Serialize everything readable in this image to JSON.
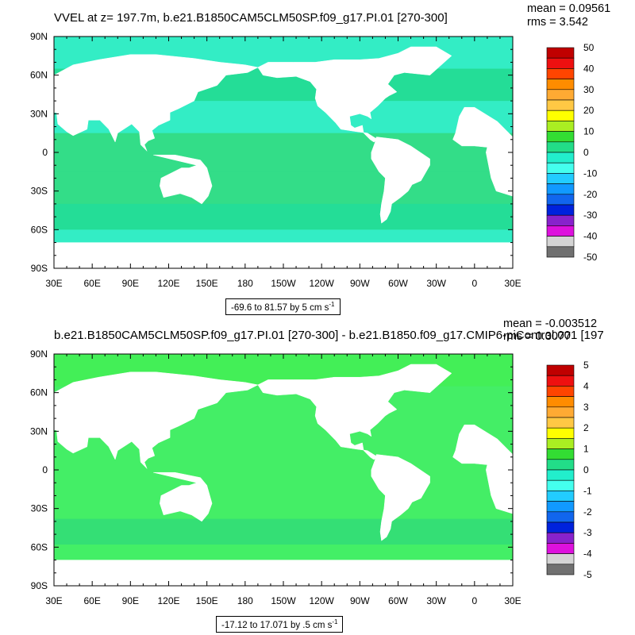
{
  "panels": [
    {
      "title": "VVEL at z= 197.7m, b.e21.B1850CAM5CLM50SP.f09_g17.PI.01 [270-300]",
      "mean_label": "mean = 0.09561",
      "rms_label": "rms = 3.542",
      "range_text": "-69.6 to 81.57 by 5 cm s",
      "range_sup": "-1"
    },
    {
      "title": "b.e21.B1850CAM5CLM50SP.f09_g17.PI.01 [270-300] - b.e21.B1850.f09_g17.CMIP6-piControl.001 [197",
      "mean_label": "mean = -0.003512",
      "rms_label": "rms = 0.3077",
      "range_text": "-17.12 to 17.071 by .5 cm s",
      "range_sup": "-1"
    }
  ],
  "chart_data": [
    {
      "type": "heatmap",
      "title": "VVEL at z= 197.7m, b.e21.B1850CAM5CLM50SP.f09_g17.PI.01 [270-300]",
      "x_ticks": [
        "30E",
        "60E",
        "90E",
        "120E",
        "150E",
        "180",
        "150W",
        "120W",
        "90W",
        "60W",
        "30W",
        "0",
        "30E"
      ],
      "y_ticks": [
        "90N",
        "60N",
        "30N",
        "0",
        "30S",
        "60S",
        "90S"
      ],
      "xlim": [
        30,
        390
      ],
      "ylim": [
        -90,
        90
      ],
      "colorbar_labels": [
        "50",
        "40",
        "30",
        "20",
        "10",
        "0",
        "-10",
        "-20",
        "-30",
        "-40",
        "-50"
      ],
      "colorbar_colors": [
        "#c00000",
        "#ee1010",
        "#ff4500",
        "#ff8c00",
        "#ffaa33",
        "#ffc844",
        "#ffff00",
        "#aaee22",
        "#33dd33",
        "#22dd88",
        "#22eecc",
        "#44ffee",
        "#22ccff",
        "#1199ff",
        "#1166ee",
        "#0022dd",
        "#8822cc",
        "#dd11dd",
        "#d4d4d4",
        "#707070"
      ],
      "stats": {
        "mean": 0.09561,
        "rms": 3.542
      },
      "range": {
        "min": -69.6,
        "max": 81.57,
        "interval": 5,
        "units": "cm s-1"
      }
    },
    {
      "type": "heatmap",
      "title": "b.e21.B1850CAM5CLM50SP.f09_g17.PI.01 [270-300] - b.e21.B1850.f09_g17.CMIP6-piControl.001 [197",
      "x_ticks": [
        "30E",
        "60E",
        "90E",
        "120E",
        "150E",
        "180",
        "150W",
        "120W",
        "90W",
        "60W",
        "30W",
        "0",
        "30E"
      ],
      "y_ticks": [
        "90N",
        "60N",
        "30N",
        "0",
        "30S",
        "60S",
        "90S"
      ],
      "xlim": [
        30,
        390
      ],
      "ylim": [
        -90,
        90
      ],
      "colorbar_labels": [
        "5",
        "4",
        "3",
        "2",
        "1",
        "0",
        "-1",
        "-2",
        "-3",
        "-4",
        "-5"
      ],
      "colorbar_colors": [
        "#c00000",
        "#ee1010",
        "#ff4500",
        "#ff8c00",
        "#ffaa33",
        "#ffc844",
        "#ffff00",
        "#aaee22",
        "#33dd33",
        "#22dd88",
        "#22eecc",
        "#44ffee",
        "#22ccff",
        "#1199ff",
        "#1166ee",
        "#0022dd",
        "#8822cc",
        "#dd11dd",
        "#d4d4d4",
        "#707070"
      ],
      "stats": {
        "mean": -0.003512,
        "rms": 0.3077
      },
      "range": {
        "min": -17.12,
        "max": 17.071,
        "interval": 0.5,
        "units": "cm s-1"
      }
    }
  ]
}
